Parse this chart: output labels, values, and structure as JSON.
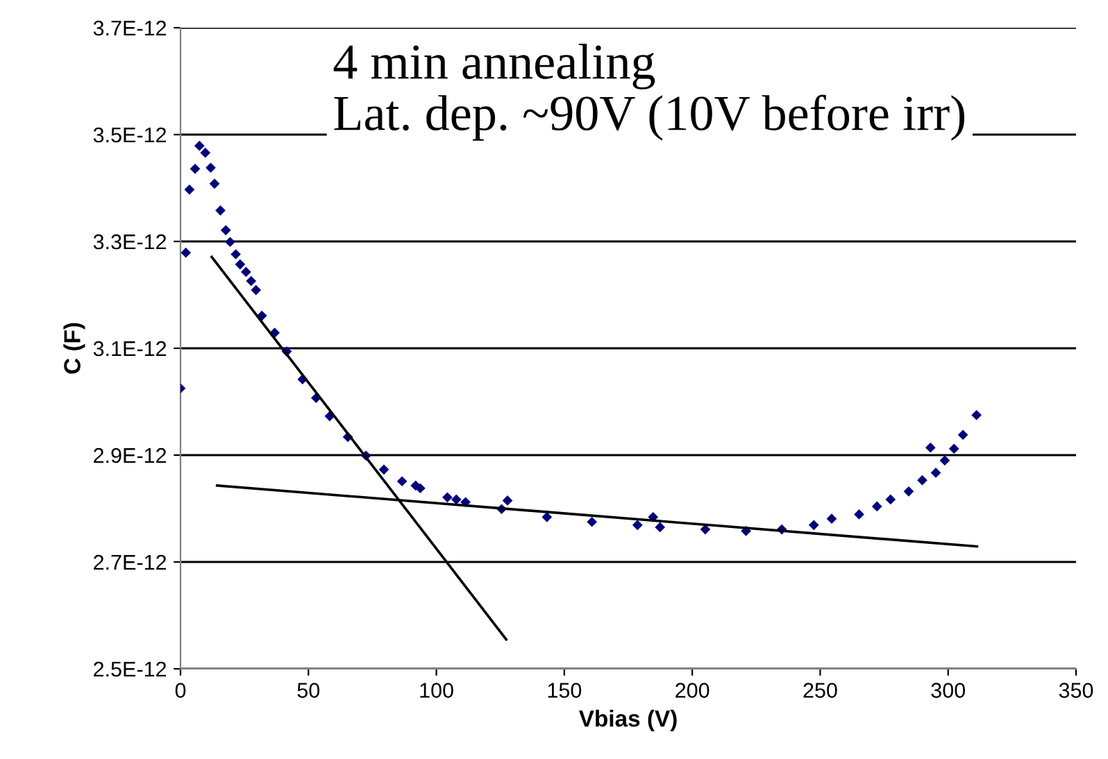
{
  "chart_data": {
    "type": "scatter",
    "xlabel": "Vbias (V)",
    "ylabel": "C (F)",
    "xlim": [
      0,
      350
    ],
    "xticks": [
      0,
      50,
      100,
      150,
      200,
      250,
      300,
      350
    ],
    "ylim": [
      2.5e-12,
      3.7e-12
    ],
    "yticks": [
      {
        "value": 2.5e-12,
        "label": "2.5E-12"
      },
      {
        "value": 2.7e-12,
        "label": "2.7E-12"
      },
      {
        "value": 2.9e-12,
        "label": "2.9E-12"
      },
      {
        "value": 3.1e-12,
        "label": "3.1E-12"
      },
      {
        "value": 3.3e-12,
        "label": "3.3E-12"
      },
      {
        "value": 3.5e-12,
        "label": "3.5E-12"
      },
      {
        "value": 3.7e-12,
        "label": "3.7E-12"
      }
    ],
    "grid": "y",
    "marker": "diamond",
    "annotations": [
      "4 min annealing",
      "Lat. dep. ~90V (10V before irr)"
    ],
    "series": [
      {
        "color": "#000080",
        "x": [
          0,
          2.1,
          3.5,
          5.7,
          7.4,
          9.7,
          11.8,
          13.3,
          15.6,
          17.7,
          19.4,
          21.6,
          23.3,
          25.6,
          27.6,
          29.5,
          31.8,
          36.8,
          41.5,
          47.7,
          53,
          58.3,
          65.4,
          72.5,
          79.5,
          86.6,
          91.9,
          93.7,
          104.3,
          107.8,
          111.4,
          125.5,
          127.8,
          143.2,
          160.8,
          178.6,
          184.7,
          187.4,
          205.1,
          221,
          235,
          247.5,
          254.5,
          265.2,
          272.2,
          277.5,
          284.6,
          289.9,
          293.1,
          295.2,
          298.7,
          302.3,
          305.8,
          311.1
        ],
        "values": [
          3.025e-12,
          3.279e-12,
          3.397e-12,
          3.436e-12,
          3.479e-12,
          3.466e-12,
          3.438e-12,
          3.408e-12,
          3.358e-12,
          3.321e-12,
          3.299e-12,
          3.276e-12,
          3.257e-12,
          3.243e-12,
          3.226e-12,
          3.209e-12,
          3.161e-12,
          3.129e-12,
          3.094e-12,
          3.042e-12,
          3.007e-12,
          2.973e-12,
          2.934e-12,
          2.899e-12,
          2.873e-12,
          2.851e-12,
          2.843e-12,
          2.838e-12,
          2.821e-12,
          2.817e-12,
          2.812e-12,
          2.799e-12,
          2.815e-12,
          2.784e-12,
          2.775e-12,
          2.769e-12,
          2.784e-12,
          2.765e-12,
          2.761e-12,
          2.758e-12,
          2.761e-12,
          2.769e-12,
          2.781e-12,
          2.789e-12,
          2.804e-12,
          2.817e-12,
          2.832e-12,
          2.853e-12,
          2.914e-12,
          2.867e-12,
          2.89e-12,
          2.912e-12,
          2.938e-12,
          2.975e-12
        ]
      },
      {
        "type": "line",
        "color": "#000000",
        "marker": "none",
        "line_style": "solid",
        "x": [
          12.2,
          127.3
        ],
        "values": [
          3.271e-12,
          2.555e-12
        ]
      },
      {
        "type": "line",
        "color": "#000000",
        "marker": "none",
        "line_style": "solid",
        "x": [
          14.3,
          311.3
        ],
        "values": [
          2.843e-12,
          2.729e-12
        ]
      }
    ]
  }
}
